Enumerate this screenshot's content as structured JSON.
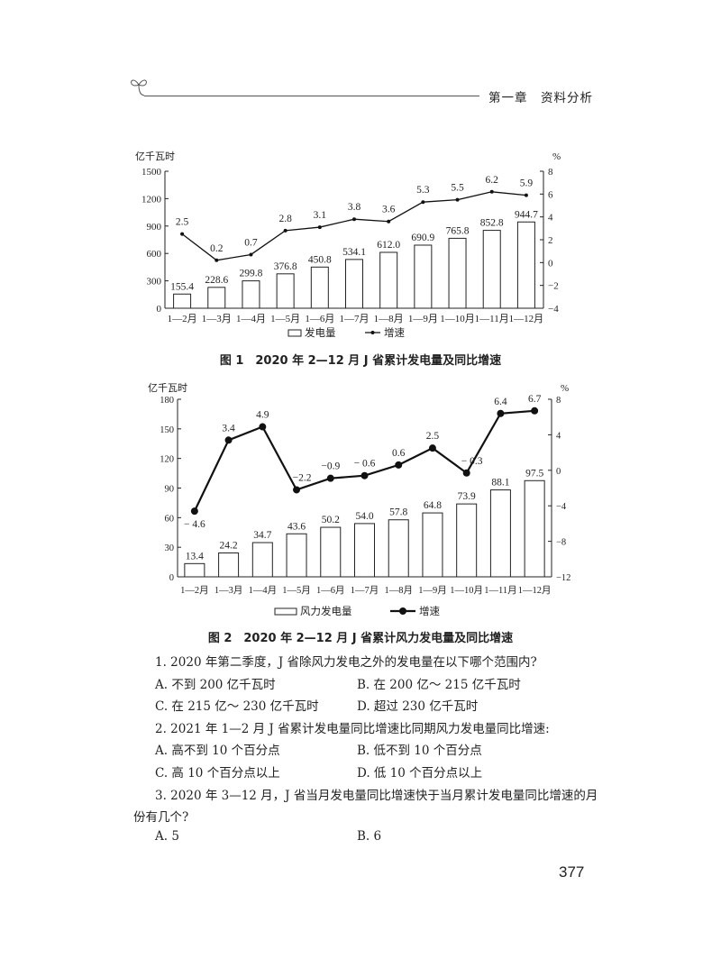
{
  "header": {
    "chapter": "第一章　资料分析",
    "icon": "sprout-icon"
  },
  "chart_data": [
    {
      "type": "bar+line",
      "title": "图 1　2020 年 2—12 月 J 省累计发电量及同比增速",
      "ylabel": "亿千瓦时",
      "y2label": "%",
      "categories": [
        "1—2月",
        "1—3月",
        "1—4月",
        "1—5月",
        "1—6月",
        "1—7月",
        "1—8月",
        "1—9月",
        "1—10月",
        "1—11月",
        "1—12月"
      ],
      "ylim": [
        0,
        1500
      ],
      "yticks": [
        0,
        300,
        600,
        900,
        1200,
        1500
      ],
      "y2lim": [
        -4,
        8
      ],
      "y2ticks": [
        "−4",
        "−2",
        "0",
        "2",
        "4",
        "6",
        "8"
      ],
      "series": [
        {
          "name": "发电量",
          "kind": "bar",
          "values": [
            155.4,
            228.6,
            299.8,
            376.8,
            450.8,
            534.1,
            612.0,
            690.9,
            765.8,
            852.8,
            944.7
          ],
          "labels": [
            "155.4",
            "228.6",
            "299.8",
            "376.8",
            "450.8",
            "534.1",
            "612.0",
            "690.9",
            "765.8",
            "852.8",
            "944.7"
          ]
        },
        {
          "name": "增速",
          "kind": "line",
          "axis": "right",
          "values": [
            2.5,
            0.2,
            0.7,
            2.8,
            3.1,
            3.8,
            3.6,
            5.3,
            5.5,
            6.2,
            5.9
          ],
          "labels": [
            "2.5",
            "0.2",
            "0.7",
            "2.8",
            "3.1",
            "3.8",
            "3.6",
            "5.3",
            "5.5",
            "6.2",
            "5.9"
          ]
        }
      ],
      "legend": "bottom",
      "grid": false
    },
    {
      "type": "bar+line",
      "title": "图 2　2020 年 2—12 月 J 省累计风力发电量及同比增速",
      "ylabel": "亿千瓦时",
      "y2label": "%",
      "categories": [
        "1—2月",
        "1—3月",
        "1—4月",
        "1—5月",
        "1—6月",
        "1—7月",
        "1—8月",
        "1—9月",
        "1—10月",
        "1—11月",
        "1—12月"
      ],
      "ylim": [
        0,
        180
      ],
      "yticks": [
        0,
        30,
        60,
        90,
        120,
        150,
        180
      ],
      "y2lim": [
        -12,
        8
      ],
      "y2ticks": [
        "−12",
        "−8",
        "−4",
        "0",
        "4",
        "8"
      ],
      "series": [
        {
          "name": "风力发电量",
          "kind": "bar",
          "values": [
            13.4,
            24.2,
            34.7,
            43.6,
            50.2,
            54.0,
            57.8,
            64.8,
            73.9,
            88.1,
            97.5
          ],
          "labels": [
            "13.4",
            "24.2",
            "34.7",
            "43.6",
            "50.2",
            "54.0",
            "57.8",
            "64.8",
            "73.9",
            "88.1",
            "97.5"
          ]
        },
        {
          "name": "增速",
          "kind": "line",
          "axis": "right",
          "values": [
            -4.6,
            3.4,
            4.9,
            -2.2,
            -0.9,
            -0.6,
            0.6,
            2.5,
            -0.3,
            6.4,
            6.7
          ],
          "labels": [
            "− 4.6",
            "3.4",
            "4.9",
            "−2.2",
            "−0.9",
            "− 0.6",
            "0.6",
            "2.5",
            "− 0.3",
            "6.4",
            "6.7"
          ]
        }
      ],
      "legend": "bottom",
      "grid": false
    }
  ],
  "questions": [
    {
      "text": "1. 2020 年第二季度，J 省除风力发电之外的发电量在以下哪个范围内?",
      "options": [
        "A. 不到 200 亿千瓦时",
        "B. 在 200 亿～ 215 亿千瓦时",
        "C. 在 215 亿～ 230 亿千瓦时",
        "D. 超过 230 亿千瓦时"
      ]
    },
    {
      "text": "2. 2021 年 1—2 月 J 省累计发电量同比增速比同期风力发电量同比增速:",
      "options": [
        "A. 高不到 10 个百分点",
        "B. 低不到 10 个百分点",
        "C. 高 10 个百分点以上",
        "D. 低 10 个百分点以上"
      ]
    },
    {
      "text": "3. 2020 年 3—12 月，J 省当月发电量同比增速快于当月累计发电量同比增速的月",
      "text_cont": "份有几个?",
      "options": [
        "A. 5",
        "B. 6"
      ]
    }
  ],
  "page_number": "377"
}
